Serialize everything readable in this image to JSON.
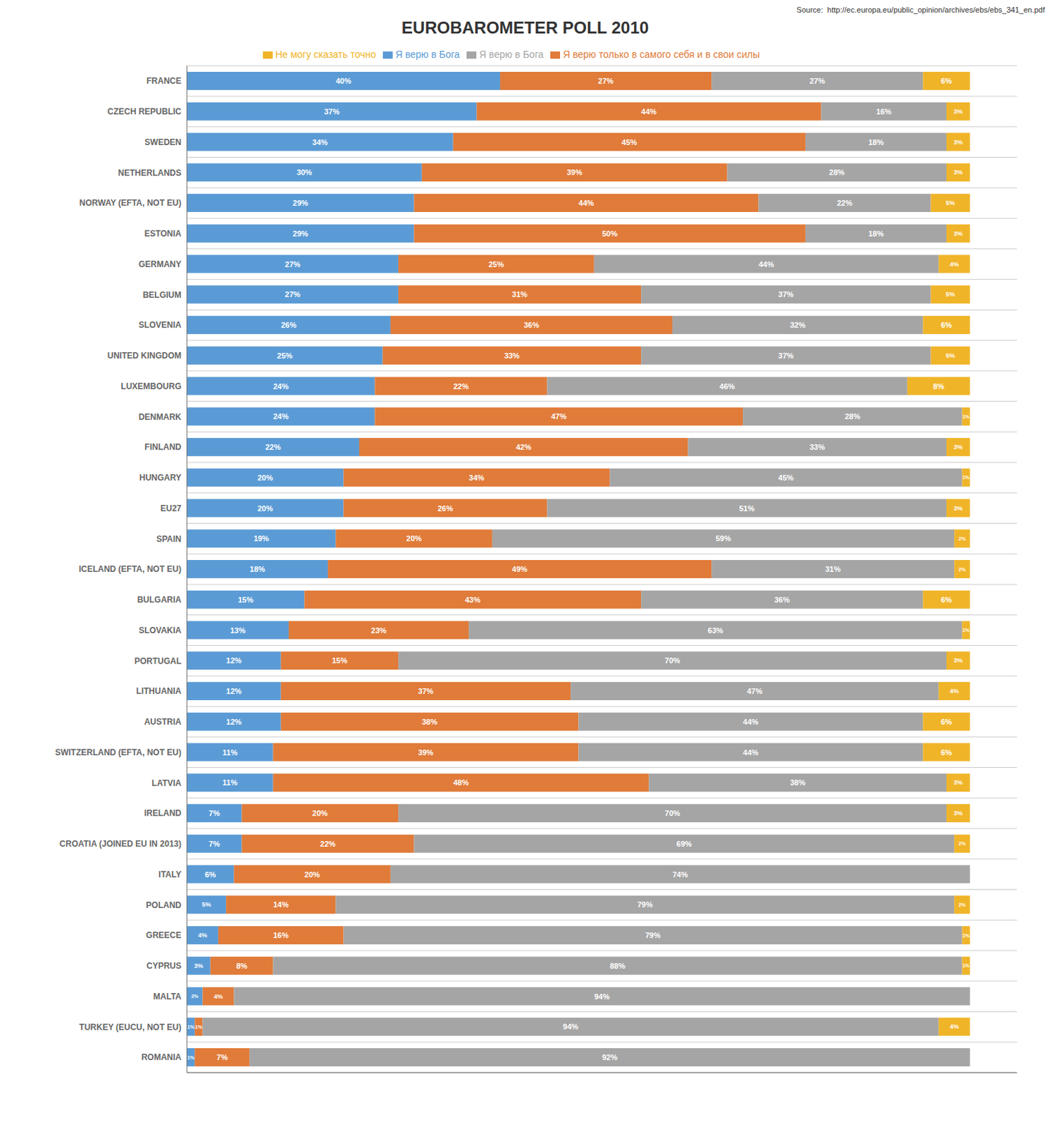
{
  "chart_data": {
    "type": "bar",
    "title": "EUROBAROMETER POLL 2010",
    "annotations": [
      "Source:  http://ec.europa.eu/public_opinion/archives/ebs/ebs_341_en.pdf"
    ],
    "orientation": "horizontal",
    "stacked": true,
    "data_labels": true,
    "tick_labels": "y",
    "grid": true,
    "legend": "top",
    "xlim": [
      0,
      106
    ],
    "categories": [
      "FRANCE",
      "CZECH REPUBLIC",
      "SWEDEN",
      "NETHERLANDS",
      "NORWAY (EFTA, NOT EU)",
      "ESTONIA",
      "GERMANY",
      "BELGIUM",
      "SLOVENIA",
      "UNITED KINGDOM",
      "LUXEMBOURG",
      "DENMARK",
      "FINLAND",
      "HUNGARY",
      "EU27",
      "SPAIN",
      "ICELAND (EFTA, NOT EU)",
      "BULGARIA",
      "SLOVAKIA",
      "PORTUGAL",
      "LITHUANIA",
      "AUSTRIA",
      "SWITZERLAND (EFTA, NOT EU)",
      "LATVIA",
      "IRELAND",
      "CROATIA (JOINED EU IN 2013)",
      "ITALY",
      "POLAND",
      "GREECE",
      "CYPRUS",
      "MALTA",
      "TURKEY (EUCU, NOT EU)",
      "ROMANIA"
    ],
    "series": [
      {
        "name": "Я верю в Бога",
        "color": "#5b9bd5",
        "values": [
          40,
          37,
          34,
          30,
          29,
          29,
          27,
          27,
          26,
          25,
          24,
          24,
          22,
          20,
          20,
          19,
          18,
          15,
          13,
          12,
          12,
          12,
          11,
          11,
          7,
          7,
          6,
          5,
          4,
          3,
          2,
          1,
          1
        ],
        "value_labels": [
          "40%",
          "37%",
          "34%",
          "30%",
          "29%",
          "29%",
          "27%",
          "27%",
          "26%",
          "25%",
          "24%",
          "24%",
          "22%",
          "20%",
          "20%",
          "19%",
          "18%",
          "15%",
          "13%",
          "12%",
          "12%",
          "12%",
          "11%",
          "11%",
          "7%",
          "7%",
          "6%",
          "5%",
          "4%",
          "3%",
          "2%",
          "1%",
          "1%"
        ]
      },
      {
        "name": "Я верю только в самого себя и в свои силы",
        "color": "#e07b39",
        "values": [
          27,
          44,
          45,
          39,
          44,
          50,
          25,
          31,
          36,
          33,
          22,
          47,
          42,
          34,
          26,
          20,
          49,
          43,
          23,
          15,
          37,
          38,
          39,
          48,
          20,
          22,
          20,
          14,
          16,
          8,
          4,
          1,
          7
        ],
        "value_labels": [
          "27%",
          "44%",
          "45%",
          "39%",
          "44%",
          "50%",
          "25%",
          "31%",
          "36%",
          "33%",
          "22%",
          "47%",
          "42%",
          "34%",
          "26%",
          "20%",
          "49%",
          "43%",
          "23%",
          "15%",
          "37%",
          "38%",
          "39%",
          "48%",
          "20%",
          "22%",
          "20%",
          "14%",
          "16%",
          "8%",
          "4%",
          "1%",
          "7%"
        ]
      },
      {
        "name": "Я верю в Бога",
        "color": "#a5a5a5",
        "values": [
          27,
          16,
          18,
          28,
          22,
          18,
          44,
          37,
          32,
          37,
          46,
          28,
          33,
          45,
          51,
          59,
          31,
          36,
          63,
          70,
          47,
          44,
          44,
          38,
          70,
          69,
          74,
          79,
          79,
          88,
          94,
          94,
          92
        ],
        "value_labels": [
          "27%",
          "16%",
          "18%",
          "28%",
          "22%",
          "18%",
          "44%",
          "37%",
          "32%",
          "37%",
          "46%",
          "28%",
          "33%",
          "45%",
          "51%",
          "59%",
          "31%",
          "36%",
          "63%",
          "70%",
          "47%",
          "44%",
          "44%",
          "38%",
          "70%",
          "69%",
          "74%",
          "79%",
          "79%",
          "88%",
          "94%",
          "94%",
          "92%"
        ]
      },
      {
        "name": "Не могу сказать точно",
        "color": "#f0b429",
        "values": [
          6,
          3,
          3,
          3,
          5,
          3,
          4,
          5,
          6,
          5,
          8,
          1,
          3,
          1,
          3,
          2,
          2,
          6,
          1,
          3,
          4,
          6,
          6,
          3,
          3,
          2,
          0,
          2,
          1,
          1,
          0,
          4,
          0
        ],
        "value_labels": [
          "6%",
          "3%",
          "3%",
          "3%",
          "5%",
          "3%",
          "4%",
          "5%",
          "6%",
          "5%",
          "8%",
          "1%",
          "3%",
          "1%",
          "3%",
          "2%",
          "2%",
          "6%",
          "1%",
          "3%",
          "4%",
          "6%",
          "6%",
          "3%",
          "3%",
          "2%",
          null,
          "2%",
          "1%",
          "1%",
          null,
          "4%",
          null
        ]
      }
    ]
  }
}
